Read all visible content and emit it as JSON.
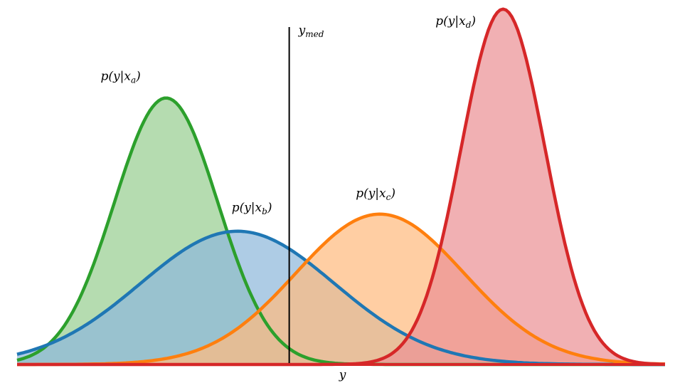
{
  "chart_data": {
    "type": "area",
    "title": "",
    "xlabel": "y",
    "ylabel": "",
    "xlim": [
      0,
      10
    ],
    "ylim": [
      0,
      1
    ],
    "grid": false,
    "legend": "none",
    "median": {
      "label": "y_med",
      "x": 4.2
    },
    "series": [
      {
        "name": "p(y|x_a)",
        "label_main": "p(y|x",
        "label_sub": "a",
        "label_close": ")",
        "mean": 2.3,
        "sd": 0.8,
        "peak": 0.78,
        "line_color": "#2ca02c",
        "fill_color": "#98cf92"
      },
      {
        "name": "p(y|x_b)",
        "label_main": "p(y|x",
        "label_sub": "b",
        "label_close": ")",
        "mean": 3.4,
        "sd": 1.5,
        "peak": 0.39,
        "line_color": "#1f77b4",
        "fill_color": "#8fb9db"
      },
      {
        "name": "p(y|x_c)",
        "label_main": "p(y|x",
        "label_sub": "c",
        "label_close": ")",
        "mean": 5.6,
        "sd": 1.3,
        "peak": 0.44,
        "line_color": "#ff7f0e",
        "fill_color": "#ffbb80"
      },
      {
        "name": "p(y|x_d)",
        "label_main": "p(y|x",
        "label_sub": "d",
        "label_close": ")",
        "mean": 7.5,
        "sd": 0.65,
        "peak": 1.04,
        "line_color": "#d62728",
        "fill_color": "#eb9295"
      }
    ]
  }
}
